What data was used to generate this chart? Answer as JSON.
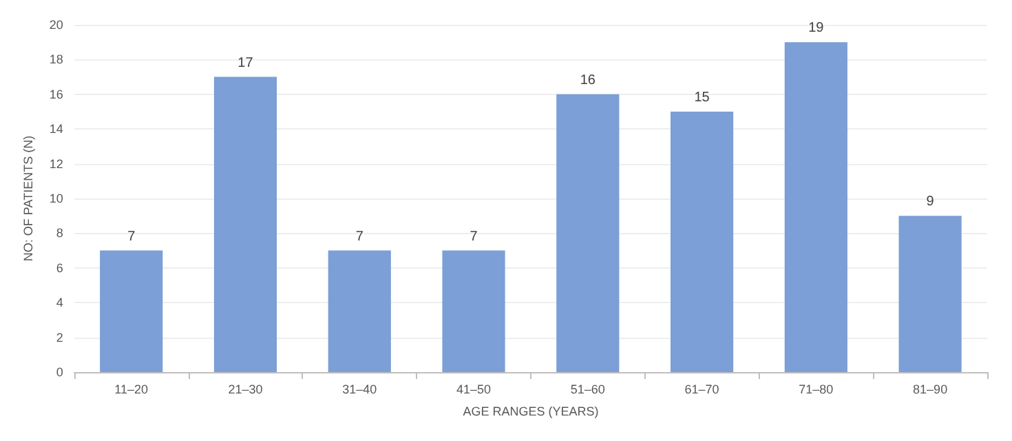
{
  "chart_data": {
    "type": "bar",
    "xlabel": "AGE RANGES (YEARS)",
    "ylabel": "NO: OF PATIENTS (N)",
    "categories": [
      "11–20",
      "21–30",
      "31–40",
      "41–50",
      "51–60",
      "61–70",
      "71–80",
      "81–90"
    ],
    "values": [
      7,
      17,
      7,
      7,
      16,
      15,
      19,
      9
    ],
    "color": "#7b9fd6",
    "ylim": [
      0,
      20
    ],
    "yticks": [
      0,
      2,
      4,
      6,
      8,
      10,
      12,
      14,
      16,
      18,
      20
    ],
    "grid": "y",
    "data_labels": true
  }
}
